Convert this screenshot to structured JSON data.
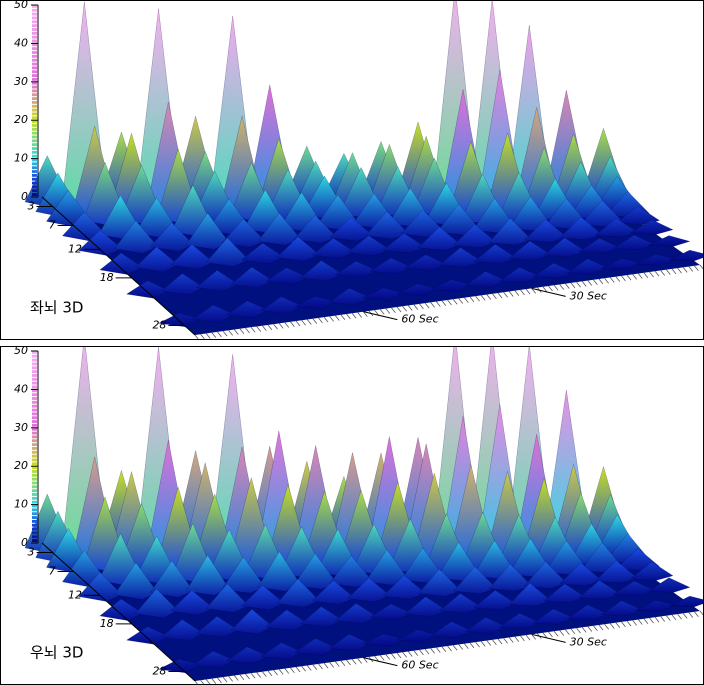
{
  "chart_data": [
    {
      "type": "surface3d",
      "title": "좌뇌 3D",
      "times": [
        90,
        84,
        78,
        72,
        66,
        60,
        54,
        48,
        42,
        36,
        30,
        24,
        18,
        12,
        6,
        0
      ],
      "freqs": [
        2,
        4,
        6,
        9,
        12,
        16,
        21,
        27
      ],
      "values": [
        [
          12,
          52,
          18,
          50,
          22,
          48,
          30,
          14,
          12,
          15,
          20,
          55,
          52,
          45,
          28,
          18
        ],
        [
          10,
          22,
          20,
          28,
          15,
          24,
          18,
          12,
          14,
          16,
          18,
          30,
          35,
          25,
          18,
          12
        ],
        [
          8,
          15,
          14,
          18,
          12,
          14,
          12,
          10,
          12,
          12,
          14,
          18,
          20,
          16,
          12,
          8
        ],
        [
          6,
          10,
          9,
          12,
          8,
          10,
          9,
          8,
          8,
          9,
          10,
          12,
          12,
          10,
          8,
          6
        ],
        [
          5,
          7,
          6,
          8,
          6,
          7,
          6,
          5,
          6,
          6,
          7,
          8,
          8,
          7,
          6,
          4
        ],
        [
          4,
          5,
          5,
          6,
          4,
          5,
          4,
          4,
          4,
          5,
          5,
          6,
          5,
          5,
          4,
          3
        ],
        [
          3,
          4,
          4,
          4,
          3,
          4,
          3,
          3,
          3,
          4,
          4,
          4,
          4,
          3,
          3,
          2
        ],
        [
          2,
          3,
          3,
          3,
          2,
          3,
          2,
          2,
          2,
          3,
          3,
          3,
          3,
          2,
          2,
          2
        ]
      ],
      "xlim": [
        90,
        0
      ],
      "xticks": [
        {
          "value": 30,
          "label": "30 Sec"
        },
        {
          "value": 60,
          "label": "60 Sec"
        }
      ],
      "ylim": [
        1,
        30
      ],
      "yticks": [
        3,
        7,
        12,
        18,
        28
      ],
      "zlim": [
        0,
        50
      ],
      "zticks": [
        0,
        10,
        20,
        30,
        40,
        50
      ],
      "colorscale": [
        {
          "value": 0,
          "color": "#00007a"
        },
        {
          "value": 5,
          "color": "#1a4be0"
        },
        {
          "value": 10,
          "color": "#30d8e0"
        },
        {
          "value": 20,
          "color": "#c8e020"
        },
        {
          "value": 30,
          "color": "#e070d8"
        },
        {
          "value": 50,
          "color": "#f4b0f0"
        }
      ]
    },
    {
      "type": "surface3d",
      "title": "우뇌 3D",
      "times": [
        90,
        84,
        78,
        72,
        66,
        60,
        54,
        48,
        42,
        36,
        30,
        24,
        18,
        12,
        6,
        0
      ],
      "freqs": [
        2,
        4,
        6,
        9,
        12,
        16,
        21,
        27
      ],
      "values": [
        [
          14,
          55,
          20,
          52,
          25,
          50,
          26,
          22,
          18,
          24,
          28,
          55,
          55,
          52,
          40,
          20
        ],
        [
          12,
          26,
          22,
          30,
          24,
          28,
          32,
          28,
          26,
          30,
          28,
          35,
          38,
          30,
          22,
          14
        ],
        [
          10,
          18,
          16,
          20,
          18,
          22,
          20,
          18,
          18,
          20,
          22,
          24,
          22,
          20,
          16,
          10
        ],
        [
          8,
          12,
          11,
          14,
          12,
          13,
          12,
          11,
          12,
          13,
          14,
          14,
          13,
          12,
          10,
          7
        ],
        [
          6,
          8,
          8,
          9,
          8,
          9,
          8,
          7,
          8,
          8,
          9,
          9,
          9,
          8,
          7,
          5
        ],
        [
          4,
          6,
          5,
          6,
          5,
          6,
          5,
          5,
          5,
          6,
          6,
          6,
          6,
          5,
          5,
          4
        ],
        [
          3,
          4,
          4,
          5,
          4,
          4,
          4,
          3,
          4,
          4,
          4,
          5,
          4,
          4,
          3,
          3
        ],
        [
          2,
          3,
          3,
          3,
          3,
          3,
          2,
          2,
          3,
          3,
          3,
          3,
          3,
          3,
          2,
          2
        ]
      ],
      "xlim": [
        90,
        0
      ],
      "xticks": [
        {
          "value": 30,
          "label": "30 Sec"
        },
        {
          "value": 60,
          "label": "60 Sec"
        }
      ],
      "ylim": [
        1,
        30
      ],
      "yticks": [
        3,
        7,
        12,
        18,
        28
      ],
      "zlim": [
        0,
        50
      ],
      "zticks": [
        0,
        10,
        20,
        30,
        40,
        50
      ],
      "colorscale": [
        {
          "value": 0,
          "color": "#00007a"
        },
        {
          "value": 5,
          "color": "#1a4be0"
        },
        {
          "value": 10,
          "color": "#30d8e0"
        },
        {
          "value": 20,
          "color": "#c8e020"
        },
        {
          "value": 30,
          "color": "#e070d8"
        },
        {
          "value": 50,
          "color": "#f4b0f0"
        }
      ]
    }
  ]
}
